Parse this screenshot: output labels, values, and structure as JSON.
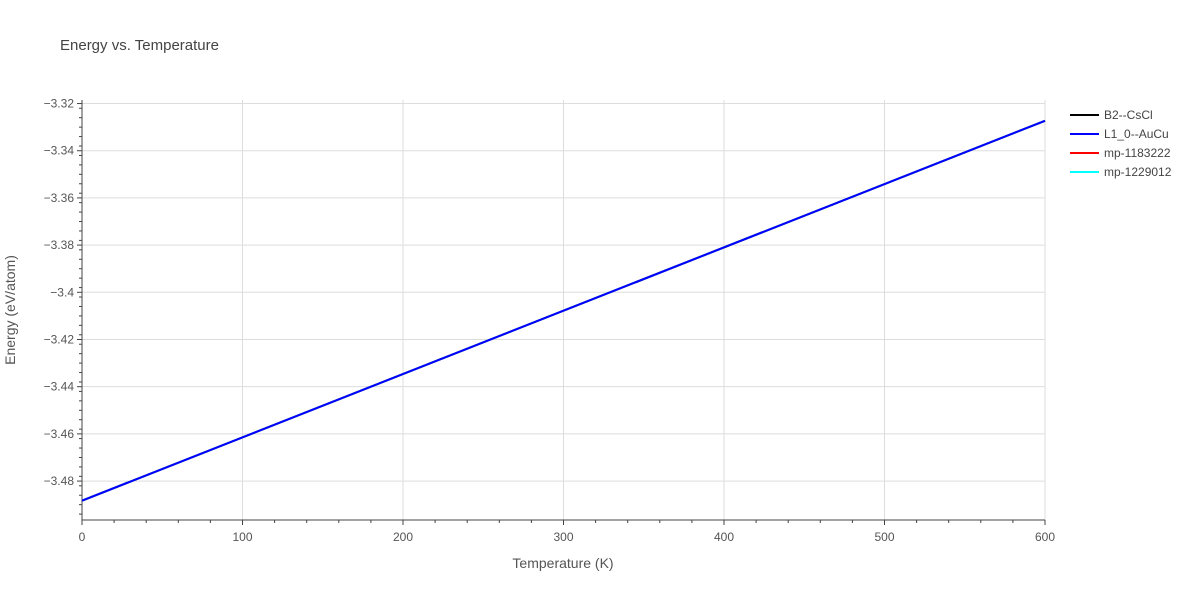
{
  "chart_data": {
    "type": "line",
    "title": "Energy vs. Temperature",
    "xlabel": "Temperature (K)",
    "ylabel": "Energy (eV/atom)",
    "xlim": [
      0,
      600
    ],
    "ylim": [
      -3.4965,
      -3.3185
    ],
    "x_ticks": [
      0,
      100,
      200,
      300,
      400,
      500,
      600
    ],
    "x_tick_labels": [
      "0",
      "100",
      "200",
      "300",
      "400",
      "500",
      "600"
    ],
    "y_ticks": [
      -3.48,
      -3.46,
      -3.44,
      -3.42,
      -3.4,
      -3.38,
      -3.36,
      -3.34,
      -3.32
    ],
    "y_tick_labels": [
      "−3.48",
      "−3.46",
      "−3.44",
      "−3.42",
      "−3.4",
      "−3.38",
      "−3.36",
      "−3.34",
      "−3.32"
    ],
    "grid": true,
    "legend_position": "right",
    "series": [
      {
        "name": "B2--CsCl",
        "color": "#000000",
        "x": [
          0,
          600
        ],
        "y": [
          -3.4883,
          -3.3273
        ]
      },
      {
        "name": "mp-1183222",
        "color": "#ff0000",
        "x": [
          0,
          600
        ],
        "y": [
          -3.4883,
          -3.3273
        ]
      },
      {
        "name": "mp-1229012",
        "color": "#00ffff",
        "x": [
          0,
          600
        ],
        "y": [
          -3.4883,
          -3.3273
        ]
      },
      {
        "name": "L1_0--AuCu",
        "color": "#0000ff",
        "x": [
          0,
          600
        ],
        "y": [
          -3.4883,
          -3.3273
        ]
      }
    ],
    "legend_order": [
      "B2--CsCl",
      "L1_0--AuCu",
      "mp-1183222",
      "mp-1229012"
    ]
  }
}
